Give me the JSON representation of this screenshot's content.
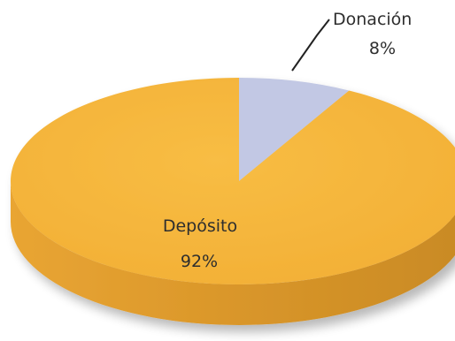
{
  "chart_data": {
    "type": "pie",
    "style": "3d",
    "slices": [
      {
        "label": "Donación",
        "value": 8,
        "value_label": "8%",
        "color": "#C2C8E4"
      },
      {
        "label": "Depósito",
        "value": 92,
        "value_label": "92%",
        "color": "#F5B53A"
      }
    ],
    "legend": "none",
    "label_color": "#2E2E2E",
    "depth_color": "#DF9D2C"
  }
}
